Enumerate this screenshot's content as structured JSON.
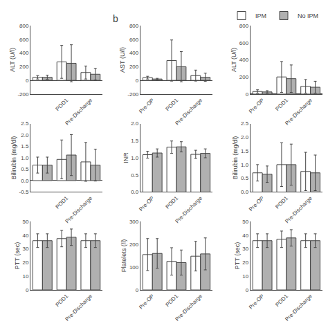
{
  "chart_data": [
    {
      "type": "bar",
      "ylabel": "ALT (U/l)",
      "categories": [
        null,
        "POD1",
        "Pre-Discharge"
      ],
      "series": [
        {
          "name": "IPM",
          "color": "#ffffff",
          "values": [
            45,
            270,
            115
          ],
          "errors": [
            25,
            240,
            95
          ]
        },
        {
          "name": "No IPM",
          "color": "#b0b0b0",
          "values": [
            45,
            250,
            90
          ],
          "errors": [
            30,
            270,
            85
          ]
        }
      ],
      "ylim": [
        -200,
        800
      ],
      "yticks": [
        -200,
        0,
        200,
        400,
        600,
        800
      ],
      "grid": false,
      "legend": "upper right"
    },
    {
      "type": "bar",
      "ylabel": "Bilirubin (mg/dl)",
      "categories": [
        null,
        "POD1",
        "Pre-Discharge"
      ],
      "series": [
        {
          "name": "IPM",
          "color": "#ffffff",
          "values": [
            0.68,
            0.93,
            0.82
          ],
          "errors": [
            0.35,
            0.85,
            0.85
          ]
        },
        {
          "name": "No IPM",
          "color": "#b0b0b0",
          "values": [
            0.68,
            1.12,
            0.68
          ],
          "errors": [
            0.35,
            0.9,
            0.7
          ]
        }
      ],
      "ylim": [
        -0.5,
        2.5
      ],
      "yticks": [
        -0.5,
        {
          "value": 0,
          "label": "0.0"
        },
        0.5,
        {
          "value": 1,
          "label": "1.0"
        },
        1.5,
        {
          "value": 2,
          "label": "2.0"
        },
        2.5
      ],
      "grid": false
    },
    {
      "type": "bar",
      "ylabel": "PTT (sec)",
      "categories": [
        null,
        "POD1",
        "Pre-Discharge"
      ],
      "series": [
        {
          "name": "IPM",
          "color": "#ffffff",
          "values": [
            36,
            37.5,
            36
          ],
          "errors": [
            5,
            6,
            5
          ]
        },
        {
          "name": "No IPM",
          "color": "#b0b0b0",
          "values": [
            36,
            38.5,
            36
          ],
          "errors": [
            5,
            6,
            5
          ]
        }
      ],
      "ylim": [
        0,
        50
      ],
      "yticks": [
        0,
        10,
        20,
        30,
        40,
        50
      ],
      "grid": false
    },
    {
      "type": "bar",
      "ylabel": "AST (U/l)",
      "categories": [
        "Pre-OP",
        "POD1",
        "Pre-Discharge"
      ],
      "series": [
        {
          "name": "IPM",
          "color": "#ffffff",
          "values": [
            40,
            290,
            70
          ],
          "errors": [
            20,
            300,
            80
          ]
        },
        {
          "name": "No IPM",
          "color": "#b0b0b0",
          "values": [
            20,
            200,
            45
          ],
          "errors": [
            10,
            220,
            60
          ]
        }
      ],
      "ylim": [
        -200,
        800
      ],
      "yticks": [
        -200,
        0,
        200,
        400,
        600,
        800
      ],
      "grid": false,
      "annotations": [
        "b"
      ]
    },
    {
      "type": "bar",
      "ylabel": "INR",
      "categories": [
        "Pre-OP",
        "POD1",
        "Pre-Discharge"
      ],
      "series": [
        {
          "name": "IPM",
          "color": "#ffffff",
          "values": [
            1.09,
            1.31,
            1.1
          ],
          "errors": [
            0.1,
            0.18,
            0.12
          ]
        },
        {
          "name": "No IPM",
          "color": "#b0b0b0",
          "values": [
            1.14,
            1.32,
            1.13
          ],
          "errors": [
            0.12,
            0.15,
            0.13
          ]
        }
      ],
      "ylim": [
        0,
        2
      ],
      "yticks": [
        {
          "value": 0,
          "label": "0.0"
        },
        0.5,
        {
          "value": 1,
          "label": "1.0"
        },
        1.5,
        {
          "value": 2,
          "label": "2.0"
        }
      ],
      "grid": false
    },
    {
      "type": "bar",
      "ylabel": "Platelets (/l)",
      "categories": [
        "Pre-OP",
        "POD1",
        "Pre-Discharge"
      ],
      "series": [
        {
          "name": "IPM",
          "color": "#ffffff",
          "values": [
            155,
            125,
            148
          ],
          "errors": [
            70,
            60,
            65
          ]
        },
        {
          "name": "No IPM",
          "color": "#b0b0b0",
          "values": [
            160,
            120,
            158
          ],
          "errors": [
            65,
            55,
            70
          ]
        }
      ],
      "ylim": [
        0,
        300
      ],
      "yticks": [
        0,
        100,
        200,
        300
      ],
      "grid": false
    },
    {
      "type": "bar",
      "ylabel": "ALT (U/l)",
      "categories": [
        "Pre-OP",
        "POD1",
        "Pre-Discharge"
      ],
      "series": [
        {
          "name": "IPM",
          "color": "#ffffff",
          "values": [
            30,
            200,
            90
          ],
          "errors": [
            20,
            180,
            80
          ]
        },
        {
          "name": "No IPM",
          "color": "#b0b0b0",
          "values": [
            25,
            180,
            80
          ],
          "errors": [
            15,
            160,
            70
          ]
        }
      ],
      "ylim": [
        0,
        800
      ],
      "yticks": [
        0,
        200,
        400,
        600,
        800
      ],
      "grid": false
    },
    {
      "type": "bar",
      "ylabel": "Bilirubin (mg/dl)",
      "categories": [
        "Pre-OP",
        "POD1",
        "Pre-Discharge"
      ],
      "series": [
        {
          "name": "IPM",
          "color": "#ffffff",
          "values": [
            0.7,
            1.0,
            0.75
          ],
          "errors": [
            0.3,
            0.8,
            0.7
          ]
        },
        {
          "name": "No IPM",
          "color": "#b0b0b0",
          "values": [
            0.65,
            1.0,
            0.7
          ],
          "errors": [
            0.3,
            0.75,
            0.65
          ]
        }
      ],
      "ylim": [
        0,
        2.5
      ],
      "yticks": [
        {
          "value": 0,
          "label": "0.0"
        },
        0.5,
        {
          "value": 1,
          "label": "1.0"
        },
        1.5,
        {
          "value": 2,
          "label": "2.0"
        },
        2.5
      ],
      "grid": false
    },
    {
      "type": "bar",
      "ylabel": "PTT (sec)",
      "categories": [
        "Pre-OP",
        "POD1",
        "Pre-Discharge"
      ],
      "series": [
        {
          "name": "IPM",
          "color": "#ffffff",
          "values": [
            36,
            37,
            36
          ],
          "errors": [
            5,
            6,
            5
          ]
        },
        {
          "name": "No IPM",
          "color": "#b0b0b0",
          "values": [
            36,
            38,
            36
          ],
          "errors": [
            5,
            6,
            5
          ]
        }
      ],
      "ylim": [
        0,
        50
      ],
      "yticks": [
        0,
        10,
        20,
        30,
        40,
        50
      ],
      "grid": false
    }
  ]
}
